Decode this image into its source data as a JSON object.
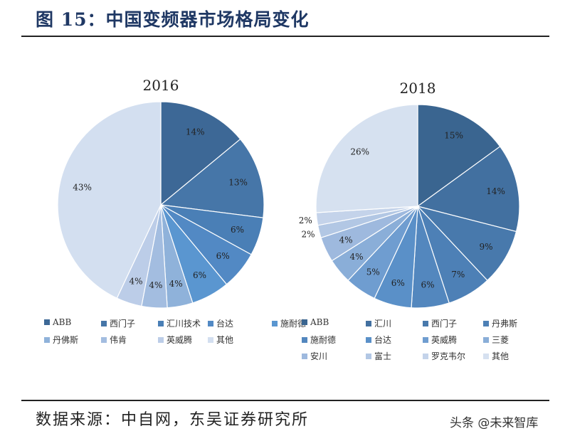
{
  "title": "图 15：中国变频器市场格局变化",
  "source": "数据来源：中自网，东吴证券研究所",
  "watermark": "头条 @未来智库",
  "chart_data": [
    {
      "type": "pie",
      "title": "2016",
      "labels": [
        "ABB",
        "西门子",
        "汇川技术",
        "台达",
        "施耐德",
        "丹佛斯",
        "伟肯",
        "英威腾",
        "其他"
      ],
      "values": [
        14,
        13,
        6,
        6,
        6,
        4,
        4,
        4,
        43
      ],
      "data_labels": [
        "14%",
        "13%",
        "6%",
        "6%",
        "6%",
        "4%",
        "4%",
        "4%",
        "43%"
      ],
      "colors": [
        "#3d6896",
        "#4676a8",
        "#4a7fb6",
        "#5289c4",
        "#5a96d0",
        "#8fb2da",
        "#a3bde0",
        "#bccde8",
        "#d3dff0"
      ],
      "legend": "bottom"
    },
    {
      "type": "pie",
      "title": "2018",
      "labels": [
        "ABB",
        "汇川",
        "西门子",
        "丹弗斯",
        "施耐德",
        "台达",
        "英威腾",
        "三菱",
        "安川",
        "富士",
        "罗克韦尔",
        "其他"
      ],
      "values": [
        15,
        14,
        9,
        7,
        6,
        6,
        5,
        4,
        4,
        2,
        2,
        26
      ],
      "data_labels": [
        "15%",
        "14%",
        "9%",
        "7%",
        "6%",
        "6%",
        "5%",
        "4%",
        "4%",
        "2%",
        "2%",
        "26%"
      ],
      "colors": [
        "#3a6590",
        "#4270a0",
        "#4879ac",
        "#4d80b6",
        "#5387be",
        "#5a90c8",
        "#6f9dd0",
        "#8aaed8",
        "#9eb9de",
        "#b2c7e4",
        "#c4d3ea",
        "#d6e1f0"
      ],
      "legend": "bottom"
    }
  ]
}
